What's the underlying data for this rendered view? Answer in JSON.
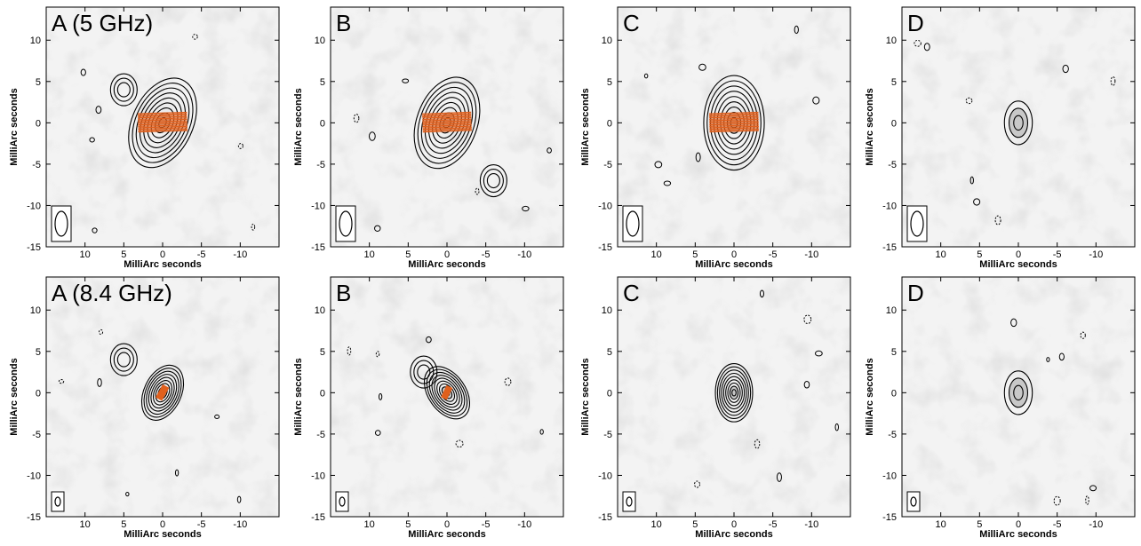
{
  "figure": {
    "xlabel": "MilliArc seconds",
    "ylabel": "MilliArc seconds",
    "x_ticks": [
      10,
      5,
      0,
      -5,
      -10
    ],
    "y_ticks": [
      10,
      5,
      0,
      -5,
      -10,
      -15
    ],
    "x_range": [
      15,
      -15
    ],
    "y_range": [
      -15,
      14
    ],
    "rows": [
      {
        "panels": [
          {
            "label": "A (5 GHz)",
            "vectors": true,
            "jet": "ne",
            "size": "large",
            "extended": true
          },
          {
            "label": "B",
            "vectors": true,
            "jet": "sw",
            "size": "large",
            "extended": true
          },
          {
            "label": "C",
            "vectors": true,
            "jet": "none",
            "size": "large",
            "extended": false
          },
          {
            "label": "D",
            "vectors": false,
            "jet": "none",
            "size": "small",
            "extended": false
          }
        ]
      },
      {
        "panels": [
          {
            "label": "A (8.4 GHz)",
            "vectors": true,
            "jet": "ne",
            "size": "medium",
            "extended": true
          },
          {
            "label": "B",
            "vectors": true,
            "jet": "nw",
            "size": "medium",
            "extended": true
          },
          {
            "label": "C",
            "vectors": false,
            "jet": "none",
            "size": "medium",
            "extended": false
          },
          {
            "label": "D",
            "vectors": false,
            "jet": "none",
            "size": "small",
            "extended": false
          }
        ]
      }
    ],
    "colors": {
      "contour": "#000000",
      "vector": "#e0601e",
      "background": "#f3f3f3"
    }
  }
}
